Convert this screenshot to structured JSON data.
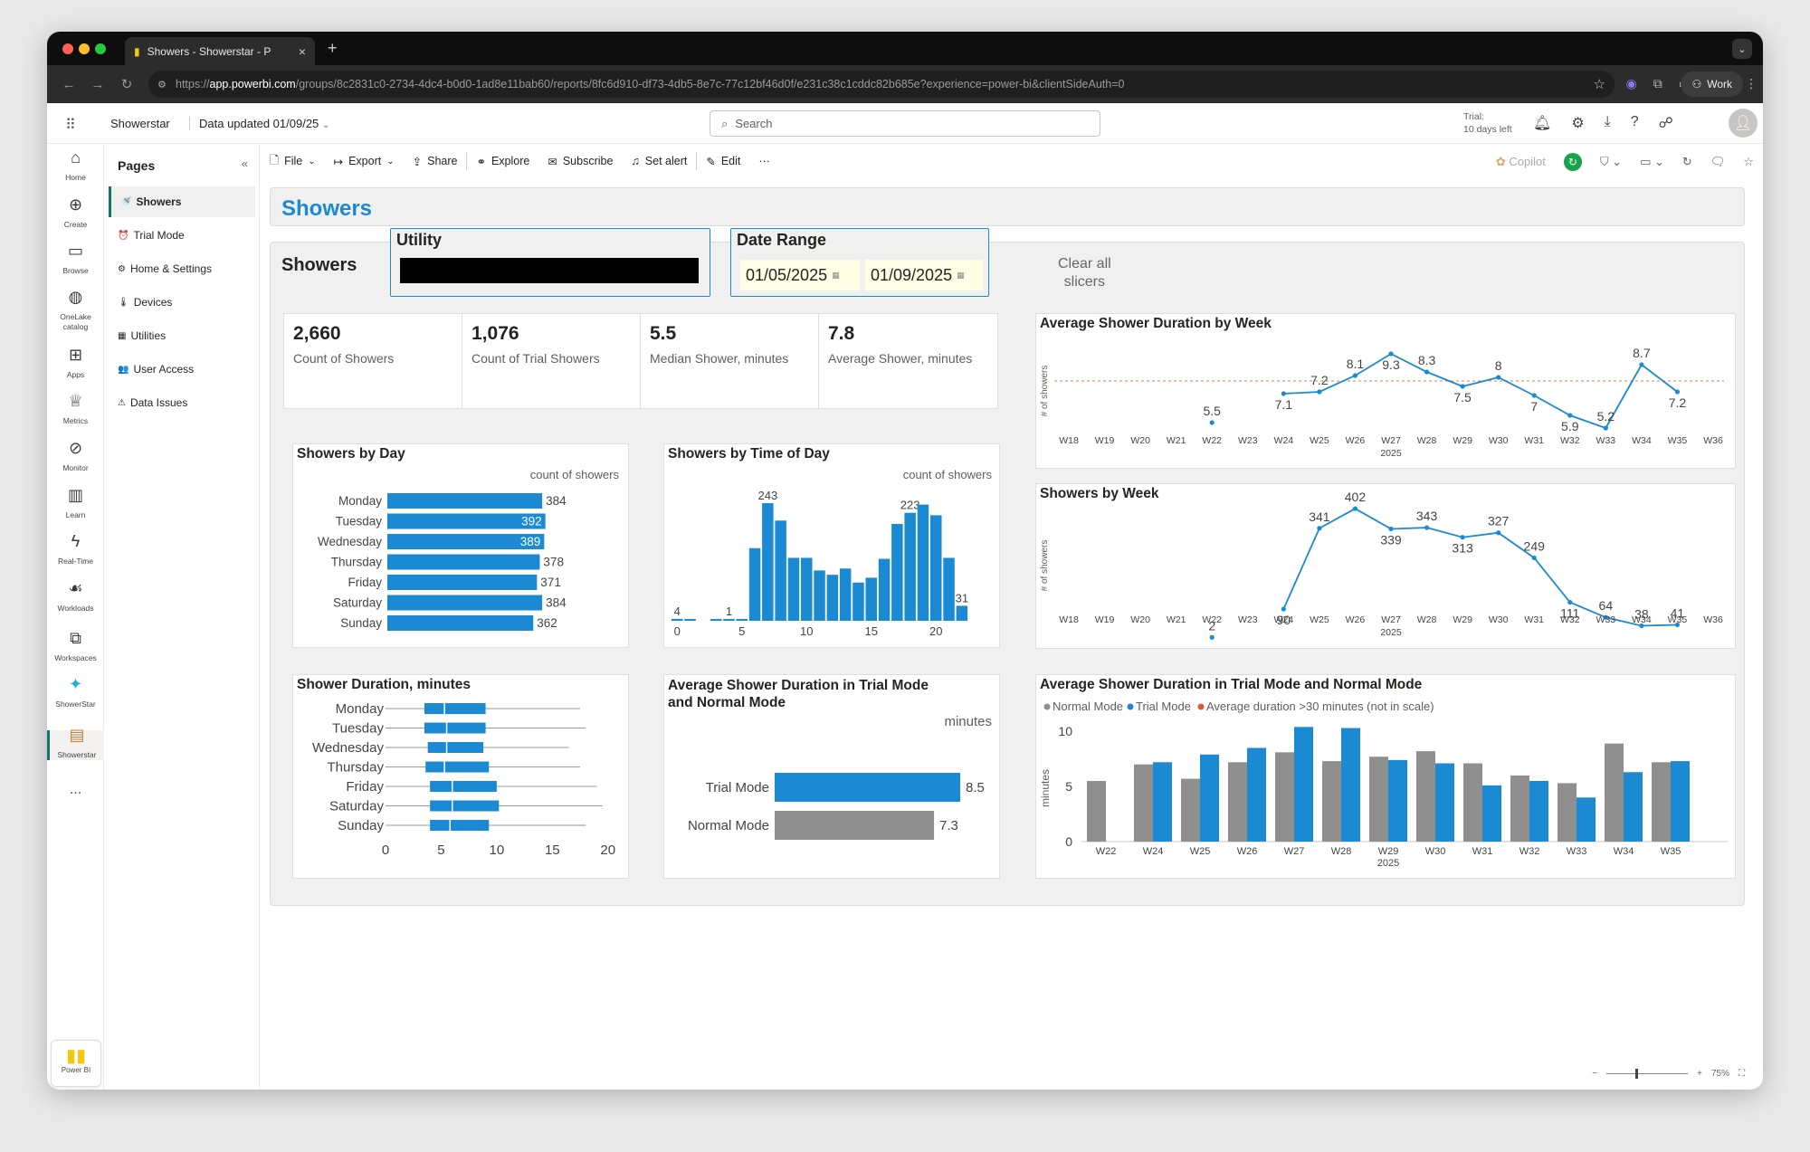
{
  "browser": {
    "tab_title": "Showers - Showerstar - P",
    "url_prefix": "https://",
    "url_domain": "app.powerbi.com",
    "url_rest": "/groups/8c2831c0-2734-4dc4-b0d0-1ad8e11bab60/reports/8fc6d910-df73-4db5-8e7c-77c12bf46d0f/e231c38c1cddc82b685e?experience=power-bi&clientSideAuth=0",
    "profile_label": "Work"
  },
  "header": {
    "workspace": "Showerstar",
    "data_updated": "Data updated 01/09/25",
    "search_placeholder": "Search",
    "trial_line1": "Trial:",
    "trial_line2": "10 days left"
  },
  "rail": [
    {
      "label": "Home",
      "icon": "home-icon"
    },
    {
      "label": "Create",
      "icon": "create-icon"
    },
    {
      "label": "Browse",
      "icon": "folder-icon"
    },
    {
      "label": "OneLake catalog",
      "icon": "onelake-icon"
    },
    {
      "label": "Apps",
      "icon": "apps-icon"
    },
    {
      "label": "Metrics",
      "icon": "trophy-icon"
    },
    {
      "label": "Monitor",
      "icon": "monitor-icon"
    },
    {
      "label": "Learn",
      "icon": "book-icon"
    },
    {
      "label": "Real-Time",
      "icon": "bolt-icon"
    },
    {
      "label": "Workloads",
      "icon": "workloads-icon"
    },
    {
      "label": "Workspaces",
      "icon": "workspaces-icon"
    },
    {
      "label": "ShowerStar",
      "icon": "showerstar-icon"
    },
    {
      "label": "Showerstar",
      "icon": "report-icon"
    }
  ],
  "rail_more": "...",
  "powerbi_label": "Power BI",
  "pages": {
    "title": "Pages",
    "items": [
      {
        "label": "Showers",
        "icon": "🚿"
      },
      {
        "label": "Trial Mode",
        "icon": "⏰"
      },
      {
        "label": "Home & Settings",
        "icon": "⚙"
      },
      {
        "label": "Devices",
        "icon": "🌡"
      },
      {
        "label": "Utilities",
        "icon": "▦"
      },
      {
        "label": "User Access",
        "icon": "👥"
      },
      {
        "label": "Data Issues",
        "icon": "⚠"
      }
    ]
  },
  "commands": {
    "file": "File",
    "export": "Export",
    "share": "Share",
    "explore": "Explore",
    "subscribe": "Subscribe",
    "set_alert": "Set alert",
    "edit": "Edit",
    "more": "···",
    "copilot": "Copilot"
  },
  "report": {
    "page_title": "Showers",
    "panel_label": "Showers",
    "utility_title": "Utility",
    "date_range_title": "Date Range",
    "date_from": "01/05/2025",
    "date_to": "01/09/2025",
    "clear_line1": "Clear all",
    "clear_line2": "slicers"
  },
  "kpis": [
    {
      "value": "2,660",
      "label": "Count of Showers"
    },
    {
      "value": "1,076",
      "label": "Count of Trial Showers"
    },
    {
      "value": "5.5",
      "label": "Median Shower, minutes"
    },
    {
      "value": "7.8",
      "label": "Average Shower, minutes"
    }
  ],
  "zoom": {
    "level": "75%"
  },
  "chart_data": [
    {
      "id": "showers_by_day",
      "type": "bar",
      "orientation": "horizontal",
      "title": "Showers by Day",
      "legend": "count of showers",
      "categories": [
        "Monday",
        "Tuesday",
        "Wednesday",
        "Thursday",
        "Friday",
        "Saturday",
        "Sunday"
      ],
      "values": [
        384,
        392,
        389,
        378,
        371,
        384,
        362
      ],
      "color": "#1b8ad3"
    },
    {
      "id": "showers_by_hour",
      "type": "bar",
      "title": "Showers by Time of Day",
      "legend": "count of showers",
      "x": [
        0,
        1,
        2,
        3,
        4,
        5,
        6,
        7,
        8,
        9,
        10,
        11,
        12,
        13,
        14,
        15,
        16,
        17,
        18,
        19,
        20,
        21,
        22
      ],
      "values": [
        4,
        1,
        0,
        1,
        1,
        2,
        150,
        243,
        207,
        130,
        130,
        104,
        95,
        108,
        79,
        89,
        128,
        200,
        223,
        240,
        218,
        130,
        31
      ],
      "labels": {
        "0": "4",
        "4": "1",
        "7": "243",
        "18": "223",
        "22": "31"
      },
      "xticks": [
        0,
        5,
        10,
        15,
        20
      ],
      "color": "#1b8ad3"
    },
    {
      "id": "avg_duration_by_week",
      "type": "line",
      "title": "Average Shower Duration by Week",
      "ylabel": "# of showers",
      "xlabel_year": "2025",
      "categories": [
        "W18",
        "W19",
        "W20",
        "W21",
        "W22",
        "W23",
        "W24",
        "W25",
        "W26",
        "W27",
        "W28",
        "W29",
        "W30",
        "W31",
        "W32",
        "W33",
        "W34",
        "W35",
        "W36"
      ],
      "values": [
        null,
        null,
        null,
        null,
        5.5,
        null,
        7.1,
        7.2,
        8.1,
        9.3,
        8.3,
        7.5,
        8.0,
        7.0,
        5.9,
        5.2,
        8.7,
        7.2,
        null
      ],
      "ylim": [
        4,
        10
      ],
      "reference": 7.8,
      "color": "#1b8ad3",
      "reference_color": "#e07b54"
    },
    {
      "id": "showers_by_week",
      "type": "line",
      "title": "Showers by Week",
      "ylabel": "# of showers",
      "xlabel_year": "2025",
      "categories": [
        "W18",
        "W19",
        "W20",
        "W21",
        "W22",
        "W23",
        "W24",
        "W25",
        "W26",
        "W27",
        "W28",
        "W29",
        "W30",
        "W31",
        "W32",
        "W33",
        "W34",
        "W35",
        "W36"
      ],
      "values": [
        null,
        null,
        null,
        null,
        2,
        null,
        90,
        341,
        402,
        339,
        343,
        313,
        327,
        249,
        111,
        64,
        38,
        41,
        null
      ],
      "ylim": [
        0,
        450
      ],
      "color": "#1b8ad3"
    },
    {
      "id": "duration_boxplot",
      "type": "box",
      "title": "Shower Duration, minutes",
      "categories": [
        "Monday",
        "Tuesday",
        "Wednesday",
        "Thursday",
        "Friday",
        "Saturday",
        "Sunday"
      ],
      "boxes": [
        {
          "whisker_low": 0,
          "q1": 3.5,
          "median": 5.3,
          "q3": 9,
          "whisker_high": 17.5
        },
        {
          "whisker_low": 0,
          "q1": 3.5,
          "median": 5.5,
          "q3": 9,
          "whisker_high": 18
        },
        {
          "whisker_low": 0,
          "q1": 3.8,
          "median": 5.5,
          "q3": 8.8,
          "whisker_high": 16.5
        },
        {
          "whisker_low": 0,
          "q1": 3.6,
          "median": 5.3,
          "q3": 9.3,
          "whisker_high": 17.5
        },
        {
          "whisker_low": 0,
          "q1": 4,
          "median": 6,
          "q3": 10,
          "whisker_high": 19
        },
        {
          "whisker_low": 0,
          "q1": 4,
          "median": 6,
          "q3": 10.2,
          "whisker_high": 19.5
        },
        {
          "whisker_low": 0,
          "q1": 4,
          "median": 5.8,
          "q3": 9.3,
          "whisker_high": 18
        }
      ],
      "xticks": [
        0,
        5,
        10,
        15,
        20
      ],
      "xlim": [
        0,
        21
      ],
      "color": "#1b8ad3"
    },
    {
      "id": "avg_trial_vs_normal",
      "type": "bar",
      "orientation": "horizontal",
      "title_line1": "Average Shower Duration in Trial Mode",
      "title_line2": "and Normal Mode",
      "legend": "minutes",
      "categories": [
        "Trial Mode",
        "Normal Mode"
      ],
      "values": [
        8.5,
        7.3
      ],
      "colors": [
        "#1b8ad3",
        "#8f8f8f"
      ]
    },
    {
      "id": "trial_vs_normal_by_week",
      "type": "bar",
      "title": "Average Shower Duration in Trial Mode and Normal Mode",
      "ylabel": "minutes",
      "xlabel_year": "2025",
      "legend": [
        {
          "name": "Normal Mode",
          "color": "#8f8f8f"
        },
        {
          "name": "Trial Mode",
          "color": "#1b8ad3"
        },
        {
          "name": "Average duration >30 minutes (not in scale)",
          "color": "#e0533f"
        }
      ],
      "categories": [
        "W22",
        "W24",
        "W25",
        "W26",
        "W27",
        "W28",
        "W29",
        "W30",
        "W31",
        "W32",
        "W33",
        "W34",
        "W35"
      ],
      "series": [
        {
          "name": "Normal Mode",
          "values": [
            5.5,
            7.0,
            5.7,
            7.2,
            8.1,
            7.3,
            7.7,
            8.2,
            7.1,
            6.0,
            5.3,
            8.9,
            7.2
          ]
        },
        {
          "name": "Trial Mode",
          "values": [
            null,
            7.2,
            7.9,
            8.5,
            10.4,
            10.3,
            7.4,
            7.1,
            5.1,
            5.5,
            4.0,
            6.3,
            7.3
          ]
        }
      ],
      "ylim": [
        0,
        11
      ],
      "yticks": [
        0,
        5,
        10
      ]
    }
  ]
}
